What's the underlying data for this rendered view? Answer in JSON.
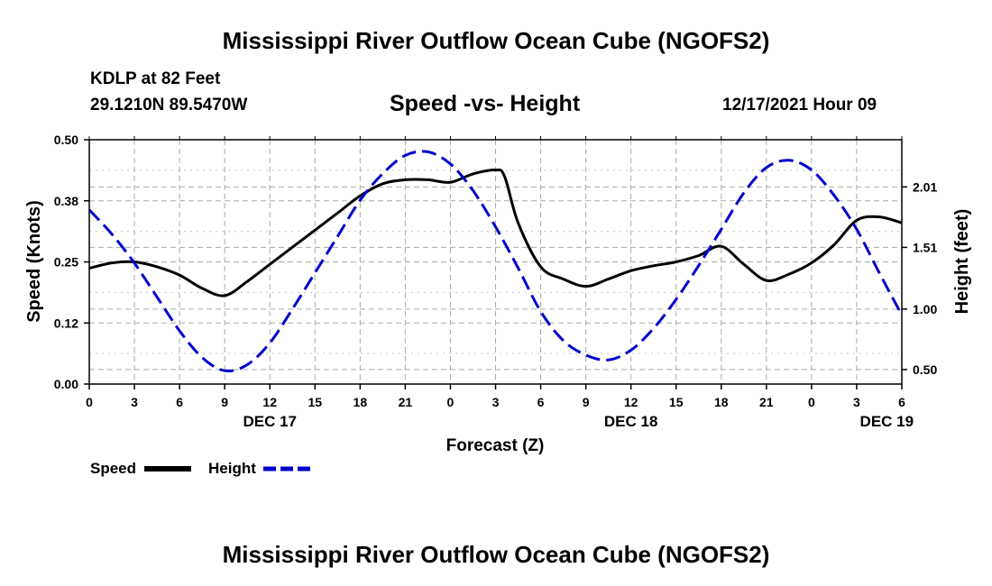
{
  "header": {
    "title": "Mississippi River Outflow Ocean Cube (NGOFS2)",
    "footer_title": "Mississippi River Outflow Ocean Cube (NGOFS2)",
    "station": "KDLP at 82 Feet",
    "coords": "29.1210N  89.5470W",
    "datetime": "12/17/2021 Hour 09"
  },
  "colors": {
    "speed": "#000000",
    "height": "#0000cc",
    "grid": "#aaaaaa"
  },
  "chart_data": {
    "type": "line",
    "title": "Speed -vs- Height",
    "xlabel": "Forecast (Z)",
    "ylabel": "Speed (Knots)",
    "y2label": "Height (feet)",
    "x_hours_range": [
      0,
      54
    ],
    "xticks": [
      {
        "h": 0,
        "label": "0"
      },
      {
        "h": 3,
        "label": "3"
      },
      {
        "h": 6,
        "label": "6"
      },
      {
        "h": 9,
        "label": "9"
      },
      {
        "h": 12,
        "label": "12"
      },
      {
        "h": 15,
        "label": "15"
      },
      {
        "h": 18,
        "label": "18"
      },
      {
        "h": 21,
        "label": "21"
      },
      {
        "h": 24,
        "label": "0"
      },
      {
        "h": 27,
        "label": "3"
      },
      {
        "h": 30,
        "label": "6"
      },
      {
        "h": 33,
        "label": "9"
      },
      {
        "h": 36,
        "label": "12"
      },
      {
        "h": 39,
        "label": "15"
      },
      {
        "h": 42,
        "label": "18"
      },
      {
        "h": 45,
        "label": "21"
      },
      {
        "h": 48,
        "label": "0"
      },
      {
        "h": 51,
        "label": "3"
      },
      {
        "h": 54,
        "label": "6"
      }
    ],
    "day_labels": [
      {
        "h": 12,
        "label": "DEC 17"
      },
      {
        "h": 36,
        "label": "DEC 18"
      },
      {
        "h": 53,
        "label": "DEC 19"
      }
    ],
    "ylim": [
      0,
      0.5
    ],
    "yticks": [
      {
        "v": 0.0,
        "label": "0.00"
      },
      {
        "v": 0.125,
        "label": "0.12"
      },
      {
        "v": 0.25,
        "label": "0.25"
      },
      {
        "v": 0.375,
        "label": "0.38"
      },
      {
        "v": 0.5,
        "label": "0.50"
      }
    ],
    "y2lim": [
      0.38,
      2.4
    ],
    "y2ticks": [
      {
        "v": 0.5,
        "label": "0.50"
      },
      {
        "v": 1.0,
        "label": "1.00"
      },
      {
        "v": 1.51,
        "label": "1.51"
      },
      {
        "v": 2.01,
        "label": "2.01"
      }
    ],
    "series": [
      {
        "name": "Speed",
        "axis": "left",
        "style": "solid",
        "x": [
          0,
          1.5,
          3,
          4.5,
          6,
          7.5,
          9,
          10.5,
          12,
          13.5,
          15,
          16.5,
          18,
          19.5,
          21,
          22.5,
          24,
          25.5,
          27,
          27.6,
          28.5,
          30,
          31.5,
          33,
          34.5,
          36,
          37.5,
          39,
          40.5,
          42,
          43.5,
          45,
          46.5,
          48,
          49.5,
          51,
          52.5,
          54
        ],
        "values": [
          0.237,
          0.248,
          0.25,
          0.24,
          0.223,
          0.196,
          0.181,
          0.21,
          0.245,
          0.28,
          0.315,
          0.35,
          0.385,
          0.41,
          0.418,
          0.418,
          0.413,
          0.43,
          0.438,
          0.425,
          0.33,
          0.24,
          0.215,
          0.2,
          0.215,
          0.232,
          0.242,
          0.25,
          0.263,
          0.282,
          0.245,
          0.212,
          0.225,
          0.248,
          0.285,
          0.335,
          0.342,
          0.33
        ]
      },
      {
        "name": "Height",
        "axis": "right",
        "style": "dashed",
        "x": [
          0,
          1.5,
          3,
          4.5,
          6,
          7.5,
          9,
          10.5,
          12,
          13.5,
          15,
          16.5,
          18,
          19.5,
          21,
          22.5,
          24,
          25.5,
          27,
          28.5,
          30,
          31.5,
          33,
          34.5,
          36,
          37.5,
          39,
          40.5,
          42,
          43.5,
          45,
          46.5,
          48,
          49.5,
          51,
          52.5,
          54
        ],
        "values": [
          1.82,
          1.62,
          1.38,
          1.1,
          0.82,
          0.6,
          0.49,
          0.54,
          0.72,
          1.0,
          1.3,
          1.6,
          1.9,
          2.12,
          2.27,
          2.3,
          2.2,
          1.98,
          1.68,
          1.34,
          0.98,
          0.74,
          0.62,
          0.58,
          0.66,
          0.84,
          1.08,
          1.36,
          1.66,
          1.96,
          2.17,
          2.23,
          2.15,
          1.94,
          1.66,
          1.3,
          0.95
        ]
      }
    ],
    "legend": [
      {
        "label": "Speed",
        "style": "solid"
      },
      {
        "label": "Height",
        "style": "dashed"
      }
    ]
  }
}
